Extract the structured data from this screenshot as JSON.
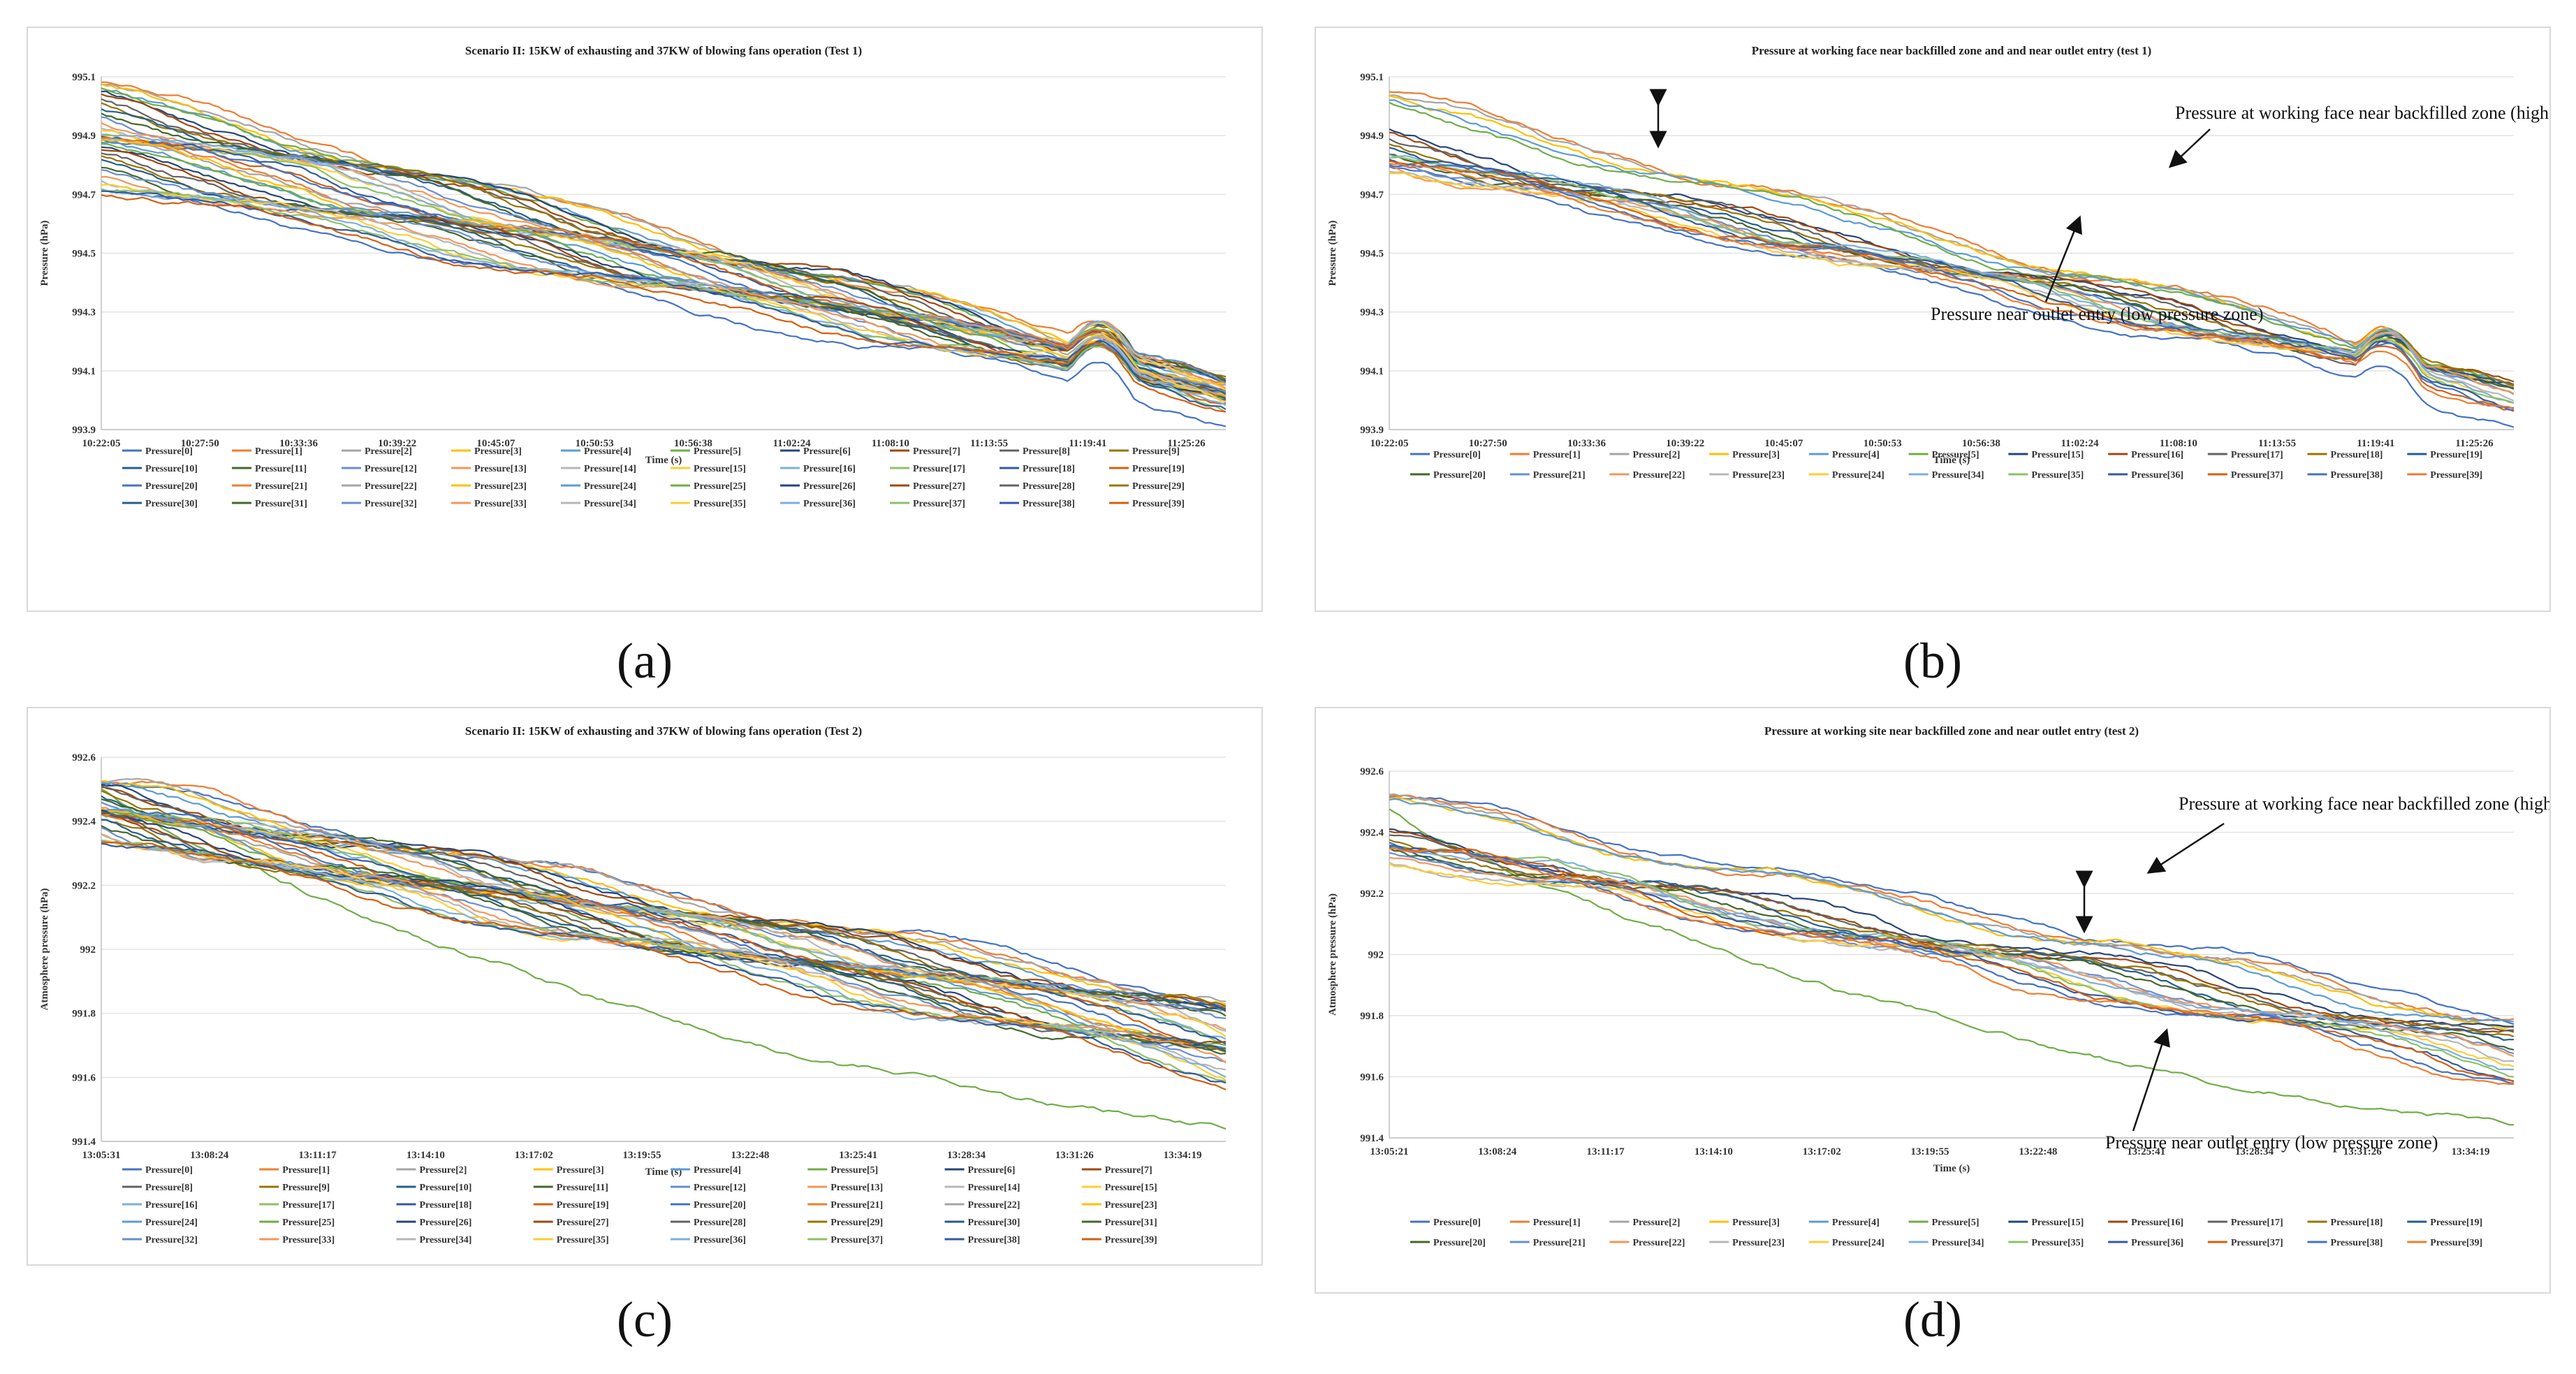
{
  "figure": {
    "sublabels": [
      "(a)",
      "(b)",
      "(c)",
      "(d)"
    ]
  },
  "chart_data": [
    {
      "id": "a",
      "type": "line",
      "title": "Scenario II: 15KW of exhausting and 37KW of blowing fans operation (Test 1)",
      "xlabel": "Time (s)",
      "ylabel": "Pressure (hPa)",
      "ylim": [
        993.9,
        995.1
      ],
      "yticks": [
        "993.9",
        "994.1",
        "994.3",
        "994.5",
        "994.7",
        "994.9",
        "995.1"
      ],
      "xticks": [
        "10:22:05",
        "10:27:50",
        "10:33:36",
        "10:39:22",
        "10:45:07",
        "10:50:53",
        "10:56:38",
        "11:02:24",
        "11:08:10",
        "11:13:55",
        "11:19:41",
        "11:25:26"
      ],
      "legend": [
        "Pressure[0]",
        "Pressure[1]",
        "Pressure[2]",
        "Pressure[3]",
        "Pressure[4]",
        "Pressure[5]",
        "Pressure[6]",
        "Pressure[7]",
        "Pressure[8]",
        "Pressure[9]",
        "Pressure[10]",
        "Pressure[11]",
        "Pressure[12]",
        "Pressure[13]",
        "Pressure[14]",
        "Pressure[15]",
        "Pressure[16]",
        "Pressure[17]",
        "Pressure[18]",
        "Pressure[19]",
        "Pressure[20]",
        "Pressure[21]",
        "Pressure[22]",
        "Pressure[23]",
        "Pressure[24]",
        "Pressure[25]",
        "Pressure[26]",
        "Pressure[27]",
        "Pressure[28]",
        "Pressure[29]",
        "Pressure[30]",
        "Pressure[31]",
        "Pressure[32]",
        "Pressure[33]",
        "Pressure[34]",
        "Pressure[35]",
        "Pressure[36]",
        "Pressure[37]",
        "Pressure[38]",
        "Pressure[39]"
      ],
      "legend_cols": 10,
      "series_profile": {
        "start_range": [
          994.72,
          995.08
        ],
        "end_range": [
          993.95,
          994.08
        ],
        "shape": "downward trend with bump near 11:19:41"
      }
    },
    {
      "id": "b",
      "type": "line",
      "title": "Pressure at working face near backfilled zone and and near outlet entry (test 1)",
      "xlabel": "Time (s)",
      "ylabel": "Pressure (hPa)",
      "ylim": [
        993.9,
        995.1
      ],
      "yticks": [
        "993.9",
        "994.1",
        "994.3",
        "994.5",
        "994.7",
        "994.9",
        "995.1"
      ],
      "xticks": [
        "10:22:05",
        "10:27:50",
        "10:33:36",
        "10:39:22",
        "10:45:07",
        "10:50:53",
        "10:56:38",
        "11:02:24",
        "11:08:10",
        "11:13:55",
        "11:19:41",
        "11:25:26"
      ],
      "legend": [
        "Pressure[0]",
        "Pressure[1]",
        "Pressure[2]",
        "Pressure[3]",
        "Pressure[4]",
        "Pressure[5]",
        "Pressure[15]",
        "Pressure[16]",
        "Pressure[17]",
        "Pressure[18]",
        "Pressure[19]",
        "Pressure[20]",
        "Pressure[21]",
        "Pressure[22]",
        "Pressure[23]",
        "Pressure[24]",
        "Pressure[34]",
        "Pressure[35]",
        "Pressure[36]",
        "Pressure[37]",
        "Pressure[38]",
        "Pressure[39]"
      ],
      "legend_cols": 11,
      "annotations": [
        "Pressure at working face near backfilled zone (high pressure zone)",
        "Pressure near outlet entry (low pressure zone)"
      ],
      "series_profile": {
        "start_range": [
          994.8,
          995.05
        ],
        "end_range": [
          993.95,
          994.08
        ],
        "shape": "two bands: high pressure zone and low pressure zone"
      }
    },
    {
      "id": "c",
      "type": "line",
      "title": "Scenario II: 15KW of exhausting and 37KW of blowing fans operation  (Test 2)",
      "xlabel": "Time (s)",
      "ylabel": "Atmosphere pressure (hPa)",
      "ylim": [
        991.4,
        992.6
      ],
      "yticks": [
        "991.4",
        "991.6",
        "991.8",
        "992",
        "992.2",
        "992.4",
        "992.6"
      ],
      "xticks": [
        "13:05:31",
        "13:08:24",
        "13:11:17",
        "13:14:10",
        "13:17:02",
        "13:19:55",
        "13:22:48",
        "13:25:41",
        "13:28:34",
        "13:31:26",
        "13:34:19"
      ],
      "legend": [
        "Pressure[0]",
        "Pressure[1]",
        "Pressure[2]",
        "Pressure[3]",
        "Pressure[4]",
        "Pressure[5]",
        "Pressure[6]",
        "Pressure[7]",
        "Pressure[8]",
        "Pressure[9]",
        "Pressure[10]",
        "Pressure[11]",
        "Pressure[12]",
        "Pressure[13]",
        "Pressure[14]",
        "Pressure[15]",
        "Pressure[16]",
        "Pressure[17]",
        "Pressure[18]",
        "Pressure[19]",
        "Pressure[20]",
        "Pressure[21]",
        "Pressure[22]",
        "Pressure[23]",
        "Pressure[24]",
        "Pressure[25]",
        "Pressure[26]",
        "Pressure[27]",
        "Pressure[28]",
        "Pressure[29]",
        "Pressure[30]",
        "Pressure[31]",
        "Pressure[32]",
        "Pressure[33]",
        "Pressure[34]",
        "Pressure[35]",
        "Pressure[36]",
        "Pressure[37]",
        "Pressure[38]",
        "Pressure[39]"
      ],
      "legend_cols": 8,
      "series_profile": {
        "start_range": [
          992.35,
          992.52
        ],
        "end_range": [
          991.44,
          991.84
        ],
        "shape": "downward trend, green outlier lowest"
      }
    },
    {
      "id": "d",
      "type": "line",
      "title": "Pressure at working site near backfilled zone  and near outlet entry (test 2)",
      "xlabel": "Time (s)",
      "ylabel": "Atmosphere pressure (hPa)",
      "ylim": [
        991.4,
        992.6
      ],
      "yticks": [
        "991.4",
        "991.6",
        "991.8",
        "992",
        "992.2",
        "992.4",
        "992.6"
      ],
      "xticks": [
        "13:05:21",
        "13:08:24",
        "13:11:17",
        "13:14:10",
        "13:17:02",
        "13:19:55",
        "13:22:48",
        "13:25:41",
        "13:28:34",
        "13:31:26",
        "13:34:19"
      ],
      "legend": [
        "Pressure[0]",
        "Pressure[1]",
        "Pressure[2]",
        "Pressure[3]",
        "Pressure[4]",
        "Pressure[5]",
        "Pressure[15]",
        "Pressure[16]",
        "Pressure[17]",
        "Pressure[18]",
        "Pressure[19]",
        "Pressure[20]",
        "Pressure[21]",
        "Pressure[22]",
        "Pressure[23]",
        "Pressure[24]",
        "Pressure[34]",
        "Pressure[35]",
        "Pressure[36]",
        "Pressure[37]",
        "Pressure[38]",
        "Pressure[39]"
      ],
      "legend_cols": 11,
      "annotations": [
        "Pressure at working face near backfilled zone (high pressure zone)",
        "Pressure near outlet entry (low pressure zone)"
      ],
      "series_profile": {
        "start_range": [
          992.35,
          992.52
        ],
        "end_range": [
          991.44,
          991.8
        ],
        "shape": "two bands: high pressure zone and low pressure zone"
      }
    }
  ],
  "palette": [
    "#4472c4",
    "#ed7d31",
    "#a5a5a5",
    "#ffc000",
    "#5b9bd5",
    "#70ad47",
    "#264478",
    "#9e480e",
    "#636363",
    "#997300",
    "#255e91",
    "#43682b",
    "#698ed0",
    "#f1975a",
    "#b7b7b7",
    "#ffcd33",
    "#7cafdd",
    "#8cc168",
    "#335aa1",
    "#d26012"
  ]
}
